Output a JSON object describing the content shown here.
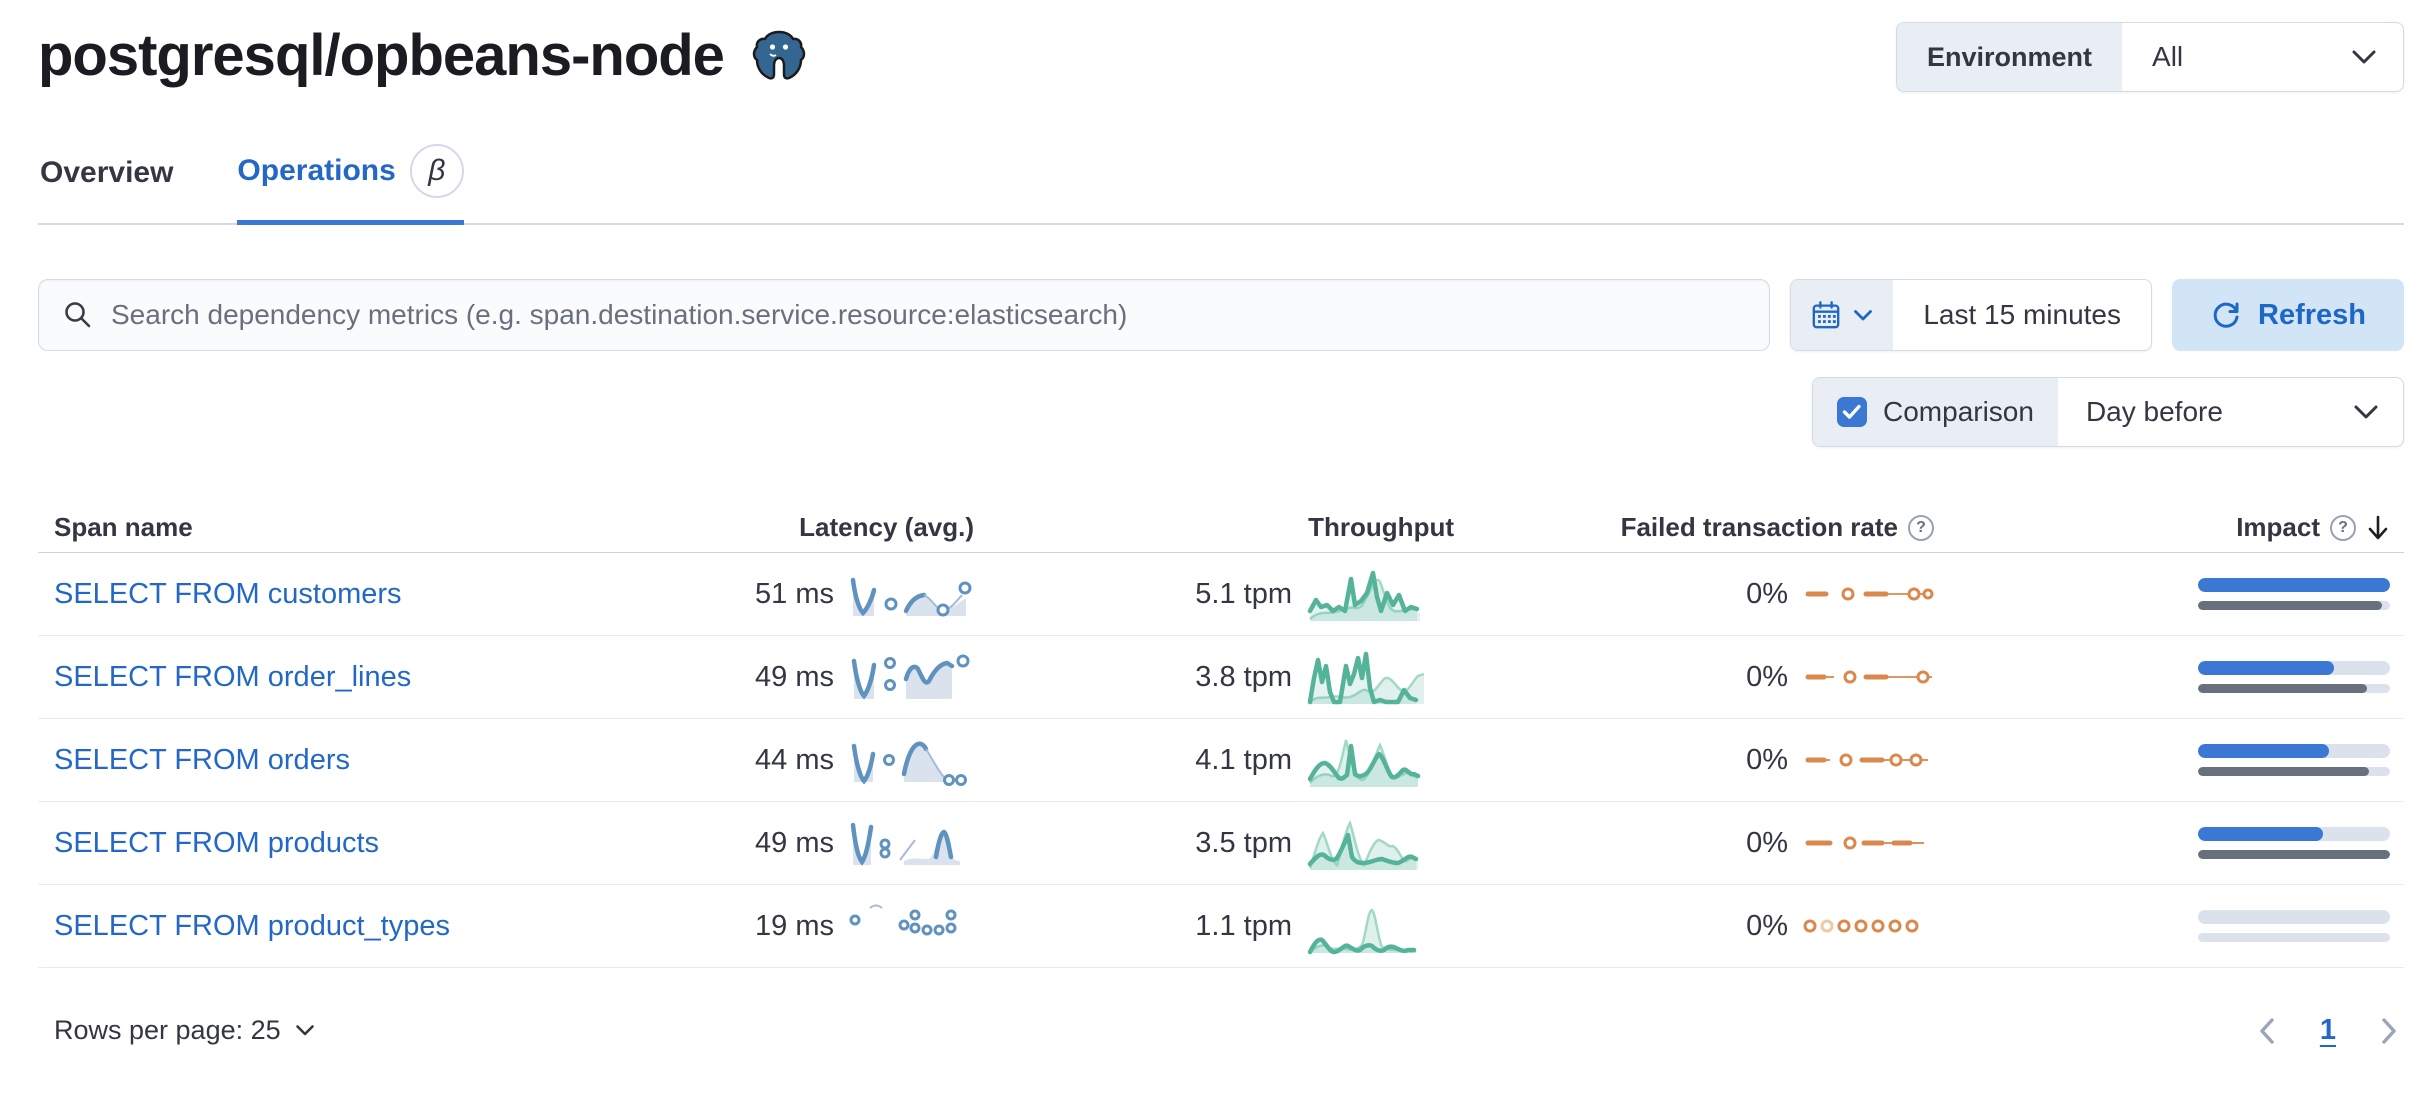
{
  "header": {
    "title": "postgresql/opbeans-node",
    "environment_label": "Environment",
    "environment_value": "All"
  },
  "tabs": {
    "overview": "Overview",
    "operations": "Operations",
    "operations_badge": "β"
  },
  "toolbar": {
    "search_placeholder": "Search dependency metrics (e.g. span.destination.service.resource:elasticsearch)",
    "time_range": "Last 15 minutes",
    "refresh_label": "Refresh",
    "comparison_label": "Comparison",
    "comparison_checked": true,
    "comparison_value": "Day before"
  },
  "table": {
    "columns": {
      "span_name": "Span name",
      "latency": "Latency (avg.)",
      "throughput": "Throughput",
      "failed_rate": "Failed transaction rate",
      "impact": "Impact"
    },
    "rows": [
      {
        "name": "SELECT FROM customers",
        "latency": "51 ms",
        "throughput": "5.1 tpm",
        "failed_rate": "0%",
        "impact_current_pct": 100,
        "impact_previous_pct": 96
      },
      {
        "name": "SELECT FROM order_lines",
        "latency": "49 ms",
        "throughput": "3.8 tpm",
        "failed_rate": "0%",
        "impact_current_pct": 71,
        "impact_previous_pct": 88
      },
      {
        "name": "SELECT FROM orders",
        "latency": "44 ms",
        "throughput": "4.1 tpm",
        "failed_rate": "0%",
        "impact_current_pct": 68,
        "impact_previous_pct": 89
      },
      {
        "name": "SELECT FROM products",
        "latency": "49 ms",
        "throughput": "3.5 tpm",
        "failed_rate": "0%",
        "impact_current_pct": 65,
        "impact_previous_pct": 100
      },
      {
        "name": "SELECT FROM product_types",
        "latency": "19 ms",
        "throughput": "1.1 tpm",
        "failed_rate": "0%",
        "impact_current_pct": 0,
        "impact_previous_pct": 0
      }
    ]
  },
  "footer": {
    "rows_per_page": "Rows per page: 25",
    "page": "1"
  },
  "colors": {
    "primary_text": "#2468c7",
    "accent_blue": "#3a78d3",
    "spark_blue": "#6092c0",
    "spark_green": "#54b399",
    "spark_orange": "#d9894d",
    "previous_period_gray": "#69707d"
  }
}
